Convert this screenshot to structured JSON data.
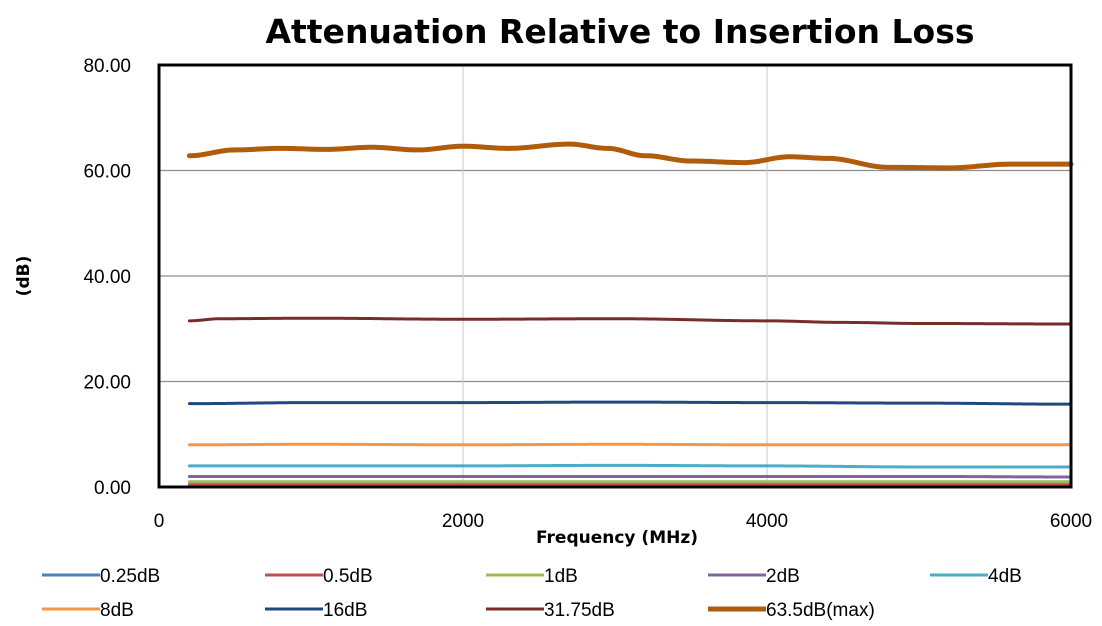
{
  "chart_data": {
    "type": "line",
    "title": "Attenuation Relative to Insertion Loss",
    "xlabel": "Frequency (MHz)",
    "ylabel": "(dB)",
    "xlim": [
      0,
      6000
    ],
    "ylim": [
      0,
      80
    ],
    "xticks": [
      0,
      2000,
      4000,
      6000
    ],
    "xtick_labels": [
      "0",
      "2000",
      "4000",
      "6000"
    ],
    "yticks": [
      0,
      20,
      40,
      60,
      80
    ],
    "ytick_labels": [
      "0.00",
      "20.00",
      "40.00",
      "60.00",
      "80.00"
    ],
    "grid": {
      "horizontal": true,
      "vertical": true
    },
    "legend_position": "bottom",
    "series": [
      {
        "name": "0.25dB",
        "color": "#4f81bd",
        "width": 3,
        "x": [
          200,
          1000,
          2000,
          3000,
          4000,
          5000,
          6000
        ],
        "y": [
          0.25,
          0.25,
          0.25,
          0.25,
          0.25,
          0.25,
          0.25
        ]
      },
      {
        "name": "0.5dB",
        "color": "#c0504d",
        "width": 3,
        "x": [
          200,
          1000,
          2000,
          3000,
          4000,
          5000,
          6000
        ],
        "y": [
          0.5,
          0.5,
          0.5,
          0.5,
          0.5,
          0.5,
          0.5
        ]
      },
      {
        "name": "1dB",
        "color": "#9bbb59",
        "width": 3,
        "x": [
          200,
          1000,
          2000,
          3000,
          4000,
          5000,
          6000
        ],
        "y": [
          1.0,
          1.0,
          1.0,
          1.0,
          1.0,
          1.0,
          1.0
        ]
      },
      {
        "name": "2dB",
        "color": "#8064a2",
        "width": 3,
        "x": [
          200,
          1000,
          2000,
          3000,
          4000,
          5000,
          6000
        ],
        "y": [
          2.0,
          2.0,
          2.0,
          2.0,
          2.0,
          2.0,
          1.9
        ]
      },
      {
        "name": "4dB",
        "color": "#4bacc6",
        "width": 3,
        "x": [
          200,
          1000,
          2000,
          3000,
          4000,
          5000,
          6000
        ],
        "y": [
          4.0,
          4.0,
          4.0,
          4.1,
          4.0,
          3.8,
          3.8
        ]
      },
      {
        "name": "8dB",
        "color": "#f79646",
        "width": 3,
        "x": [
          200,
          1000,
          2000,
          3000,
          4000,
          5000,
          6000
        ],
        "y": [
          8.0,
          8.1,
          8.0,
          8.1,
          8.0,
          8.0,
          8.0
        ]
      },
      {
        "name": "16dB",
        "color": "#1f497d",
        "width": 3,
        "x": [
          200,
          1000,
          2000,
          3000,
          4000,
          5000,
          6000
        ],
        "y": [
          15.8,
          16.0,
          16.0,
          16.1,
          16.0,
          15.9,
          15.7
        ]
      },
      {
        "name": "31.75dB",
        "color": "#772c2a",
        "width": 3,
        "x": [
          200,
          400,
          1000,
          2000,
          3000,
          4000,
          4500,
          5000,
          6000
        ],
        "y": [
          31.5,
          31.9,
          32.0,
          31.8,
          31.9,
          31.5,
          31.2,
          31.0,
          30.9
        ]
      },
      {
        "name": "63.5dB(max)",
        "color": "#b15c0a",
        "width": 5,
        "x": [
          200,
          500,
          800,
          1100,
          1400,
          1700,
          2000,
          2300,
          2700,
          2950,
          3200,
          3500,
          3850,
          4150,
          4400,
          4800,
          5200,
          5600,
          6000
        ],
        "y": [
          62.8,
          63.9,
          64.2,
          64.0,
          64.4,
          63.9,
          64.6,
          64.2,
          65.0,
          64.2,
          62.8,
          61.8,
          61.5,
          62.6,
          62.3,
          60.6,
          60.5,
          61.2,
          61.2
        ]
      }
    ]
  }
}
